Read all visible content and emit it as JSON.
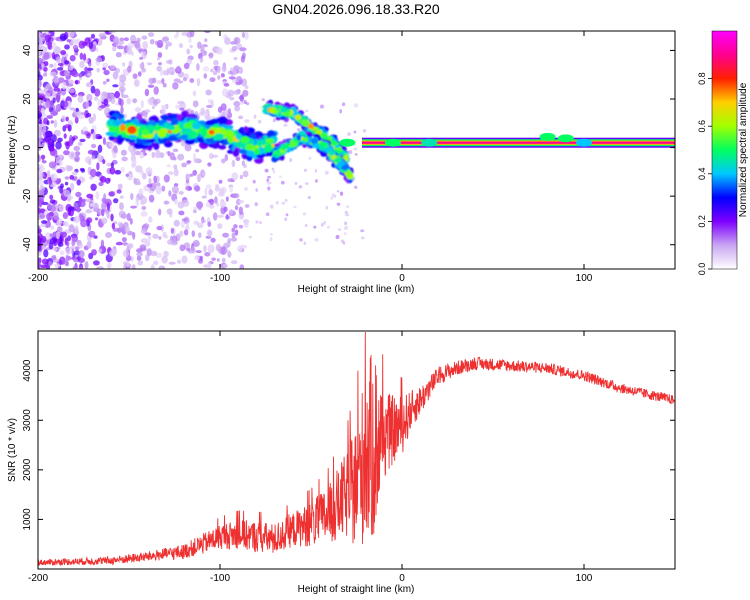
{
  "title": "GN04.2026.096.18.33.R20",
  "chart_data": [
    {
      "type": "heatmap",
      "title": "GN04.2026.096.18.33.R20",
      "xlabel": "Height of straight line (km)",
      "ylabel": "Frequency (Hz)",
      "xlim": [
        -200,
        150
      ],
      "ylim": [
        -50,
        48
      ],
      "xticks": [
        -200,
        -100,
        0,
        100
      ],
      "yticks": [
        -40,
        -20,
        0,
        20,
        40
      ],
      "colorbar": {
        "label": "Normalized spectral amplitude",
        "range": [
          0,
          1
        ],
        "ticks": [
          0.0,
          0.2,
          0.4,
          0.6,
          0.8
        ],
        "tick_labels": [
          "0.0",
          "0.2",
          "0.4",
          "0.6",
          "0.8"
        ],
        "colors": [
          "#ffffff",
          "#c9a6f2",
          "#7e00ff",
          "#0000ff",
          "#00c8ff",
          "#00ff60",
          "#a0ff00",
          "#ffd000",
          "#ff2000",
          "#ff0090",
          "#ff00ff"
        ]
      },
      "features": {
        "band_main": {
          "x": [
            -160,
            -140,
            -120,
            -100,
            -90,
            -80,
            -70
          ],
          "y": [
            9,
            6,
            8,
            6,
            3,
            0,
            2
          ]
        },
        "streak_upper": {
          "x": [
            -75,
            -60,
            -45,
            -38,
            -30
          ],
          "y": [
            16,
            14,
            6,
            2,
            -5
          ]
        },
        "streak_lower": {
          "x": [
            -70,
            -55,
            -42,
            -35,
            -28
          ],
          "y": [
            -3,
            4,
            0,
            -6,
            -12
          ]
        },
        "steady_line": {
          "x": [
            -22,
            150
          ],
          "freq_hz": 2
        }
      }
    },
    {
      "type": "line",
      "xlabel": "Height of straight line (km)",
      "ylabel": "SNR (10 * v/v)",
      "xlim": [
        -200,
        150
      ],
      "ylim": [
        0,
        4800
      ],
      "xticks": [
        -200,
        -100,
        0,
        100
      ],
      "yticks": [
        1000,
        2000,
        3000,
        4000
      ],
      "color": "#ee3030",
      "x": [
        -200,
        -180,
        -160,
        -140,
        -120,
        -110,
        -100,
        -90,
        -80,
        -70,
        -60,
        -50,
        -40,
        -30,
        -25,
        -20,
        -15,
        -10,
        -5,
        0,
        5,
        10,
        20,
        30,
        40,
        60,
        80,
        100,
        120,
        150
      ],
      "y": [
        130,
        150,
        170,
        250,
        350,
        500,
        650,
        700,
        650,
        600,
        800,
        900,
        1100,
        1500,
        1700,
        2300,
        2500,
        2700,
        2800,
        2900,
        3200,
        3400,
        3900,
        4050,
        4150,
        4100,
        4050,
        3900,
        3650,
        3400
      ],
      "noise_amplitude": [
        60,
        70,
        80,
        100,
        150,
        200,
        250,
        300,
        320,
        320,
        350,
        450,
        600,
        900,
        1300,
        1800,
        2000,
        900,
        700,
        600,
        400,
        300,
        180,
        150,
        130,
        120,
        110,
        110,
        100,
        100
      ]
    }
  ]
}
